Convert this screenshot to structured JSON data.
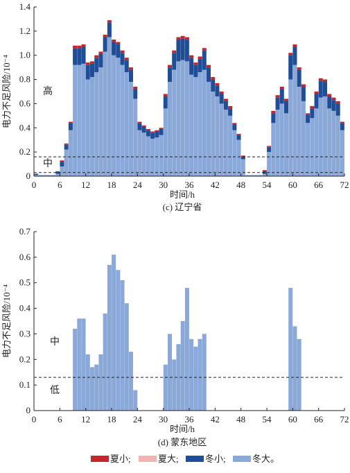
{
  "chart_data": [
    {
      "type": "bar",
      "stacked": true,
      "caption": "(c) 辽宁省",
      "xlabel": "时间/h",
      "ylabel": "电力不足风险/10⁻⁴",
      "xlim": [
        0,
        72
      ],
      "ylim": [
        0,
        1.4
      ],
      "xticks": [
        0,
        6,
        12,
        18,
        24,
        30,
        36,
        42,
        48,
        54,
        60,
        66,
        72
      ],
      "yticks": [
        "0",
        "0.2",
        "0.4",
        "0.6",
        "0.8",
        "1.0",
        "1.2",
        "1.4"
      ],
      "threshold_lines": [
        0.16,
        0.03
      ],
      "zone_labels": [
        "高",
        "中"
      ],
      "hours": [
        1,
        2,
        3,
        4,
        5,
        6,
        7,
        8,
        9,
        10,
        11,
        12,
        13,
        14,
        15,
        16,
        17,
        18,
        19,
        20,
        21,
        22,
        23,
        24,
        25,
        26,
        27,
        28,
        29,
        30,
        31,
        32,
        33,
        34,
        35,
        36,
        37,
        38,
        39,
        40,
        41,
        42,
        43,
        44,
        45,
        46,
        47,
        48,
        49,
        50,
        51,
        52,
        53,
        54,
        55,
        56,
        57,
        58,
        59,
        60,
        61,
        62,
        63,
        64,
        65,
        66,
        67,
        68,
        69,
        70,
        71,
        72
      ],
      "series": [
        {
          "name": "冬大",
          "values": [
            0.01,
            0.01,
            0.01,
            0.01,
            0.01,
            0.02,
            0.08,
            0.22,
            0.38,
            0.92,
            0.92,
            0.93,
            0.8,
            0.82,
            0.86,
            0.9,
            1.03,
            1.15,
            1.0,
            0.98,
            0.92,
            0.86,
            0.78,
            0.64,
            0.38,
            0.36,
            0.33,
            0.31,
            0.32,
            0.34,
            0.56,
            0.78,
            0.88,
            0.95,
            0.96,
            0.95,
            0.84,
            0.82,
            0.86,
            0.88,
            0.78,
            0.7,
            0.66,
            0.6,
            0.55,
            0.5,
            0.38,
            0.3,
            0.14,
            0.01,
            0.01,
            0.01,
            0.01,
            0.02,
            0.2,
            0.44,
            0.55,
            0.6,
            0.52,
            0.8,
            0.92,
            0.74,
            0.62,
            0.44,
            0.48,
            0.56,
            0.65,
            0.66,
            0.56,
            0.54,
            0.5,
            0.38
          ]
        },
        {
          "name": "冬小",
          "values": [
            0.01,
            0.0,
            0.0,
            0.0,
            0.0,
            0.02,
            0.04,
            0.04,
            0.06,
            0.14,
            0.14,
            0.14,
            0.12,
            0.11,
            0.12,
            0.11,
            0.12,
            0.12,
            0.11,
            0.11,
            0.1,
            0.1,
            0.1,
            0.08,
            0.06,
            0.05,
            0.05,
            0.05,
            0.05,
            0.05,
            0.1,
            0.12,
            0.14,
            0.18,
            0.18,
            0.18,
            0.14,
            0.1,
            0.11,
            0.16,
            0.12,
            0.1,
            0.09,
            0.08,
            0.07,
            0.06,
            0.05,
            0.04,
            0.02,
            0.0,
            0.0,
            0.0,
            0.0,
            0.02,
            0.04,
            0.08,
            0.1,
            0.12,
            0.1,
            0.2,
            0.15,
            0.14,
            0.12,
            0.07,
            0.08,
            0.12,
            0.14,
            0.12,
            0.1,
            0.09,
            0.1,
            0.06
          ]
        },
        {
          "name": "夏大",
          "values": [
            0.0,
            0.0,
            0.0,
            0.0,
            0.0,
            0.0,
            0.0,
            0.0,
            0.0,
            0.0,
            0.0,
            0.0,
            0.0,
            0.0,
            0.0,
            0.0,
            0.0,
            0.0,
            0.0,
            0.0,
            0.0,
            0.0,
            0.0,
            0.0,
            0.0,
            0.0,
            0.0,
            0.0,
            0.0,
            0.0,
            0.0,
            0.0,
            0.0,
            0.0,
            0.0,
            0.0,
            0.0,
            0.0,
            0.0,
            0.0,
            0.0,
            0.0,
            0.0,
            0.0,
            0.0,
            0.0,
            0.0,
            0.0,
            0.0,
            0.0,
            0.0,
            0.0,
            0.0,
            0.0,
            0.0,
            0.0,
            0.0,
            0.0,
            0.0,
            0.0,
            0.0,
            0.0,
            0.0,
            0.0,
            0.0,
            0.0,
            0.0,
            0.0,
            0.0,
            0.0,
            0.0,
            0.0
          ]
        },
        {
          "name": "夏小",
          "values": [
            0.0,
            0.0,
            0.0,
            0.0,
            0.0,
            0.0,
            0.01,
            0.01,
            0.01,
            0.02,
            0.02,
            0.02,
            0.02,
            0.02,
            0.02,
            0.02,
            0.02,
            0.02,
            0.02,
            0.02,
            0.02,
            0.02,
            0.02,
            0.02,
            0.01,
            0.01,
            0.01,
            0.01,
            0.01,
            0.01,
            0.02,
            0.02,
            0.02,
            0.02,
            0.02,
            0.02,
            0.02,
            0.02,
            0.02,
            0.02,
            0.02,
            0.02,
            0.02,
            0.02,
            0.02,
            0.02,
            0.01,
            0.01,
            0.01,
            0.0,
            0.0,
            0.0,
            0.0,
            0.01,
            0.01,
            0.02,
            0.02,
            0.02,
            0.02,
            0.02,
            0.02,
            0.02,
            0.02,
            0.01,
            0.02,
            0.02,
            0.02,
            0.02,
            0.02,
            0.02,
            0.02,
            0.01
          ]
        }
      ]
    },
    {
      "type": "bar",
      "stacked": true,
      "caption": "(d) 蒙东地区",
      "xlabel": "时间/h",
      "ylabel": "电力不足风险/10⁻⁴",
      "xlim": [
        0,
        72
      ],
      "ylim": [
        0,
        0.7
      ],
      "xticks": [
        0,
        6,
        12,
        18,
        24,
        30,
        36,
        42,
        48,
        54,
        60,
        66,
        72
      ],
      "yticks": [
        "0",
        "0.1",
        "0.2",
        "0.3",
        "0.4",
        "0.5",
        "0.6",
        "0.7"
      ],
      "threshold_lines": [
        0.13
      ],
      "zone_labels": [
        "中",
        "低"
      ],
      "hours": [
        1,
        2,
        3,
        4,
        5,
        6,
        7,
        8,
        9,
        10,
        11,
        12,
        13,
        14,
        15,
        16,
        17,
        18,
        19,
        20,
        21,
        22,
        23,
        24,
        25,
        26,
        27,
        28,
        29,
        30,
        31,
        32,
        33,
        34,
        35,
        36,
        37,
        38,
        39,
        40,
        41,
        42,
        43,
        44,
        45,
        46,
        47,
        48,
        49,
        50,
        51,
        52,
        53,
        54,
        55,
        56,
        57,
        58,
        59,
        60,
        61,
        62,
        63,
        64,
        65,
        66,
        67,
        68,
        69,
        70,
        71,
        72
      ],
      "series": [
        {
          "name": "冬大",
          "values": [
            0,
            0,
            0,
            0,
            0,
            0,
            0,
            0,
            0,
            0.32,
            0.36,
            0.36,
            0.22,
            0.17,
            0.18,
            0.22,
            0.38,
            0.57,
            0.61,
            0.55,
            0.51,
            0.42,
            0.23,
            0.08,
            0,
            0,
            0,
            0,
            0,
            0,
            0.18,
            0.3,
            0.2,
            0.26,
            0.35,
            0.48,
            0.28,
            0.25,
            0.28,
            0.3,
            0,
            0,
            0,
            0,
            0,
            0,
            0,
            0,
            0,
            0,
            0,
            0,
            0,
            0,
            0,
            0,
            0,
            0,
            0,
            0.48,
            0.33,
            0.28,
            0,
            0,
            0,
            0,
            0,
            0,
            0,
            0,
            0,
            0
          ]
        },
        {
          "name": "冬小",
          "values": [
            0,
            0,
            0,
            0,
            0,
            0,
            0,
            0,
            0,
            0,
            0,
            0,
            0,
            0,
            0,
            0,
            0,
            0,
            0,
            0,
            0,
            0,
            0,
            0,
            0,
            0,
            0,
            0,
            0,
            0,
            0,
            0,
            0,
            0,
            0,
            0,
            0,
            0,
            0,
            0,
            0,
            0,
            0,
            0,
            0,
            0,
            0,
            0,
            0,
            0,
            0,
            0,
            0,
            0,
            0,
            0,
            0,
            0,
            0,
            0,
            0,
            0,
            0,
            0,
            0,
            0,
            0,
            0,
            0,
            0,
            0,
            0
          ]
        },
        {
          "name": "夏大",
          "values": [
            0,
            0,
            0,
            0,
            0,
            0,
            0,
            0,
            0,
            0,
            0,
            0,
            0,
            0,
            0,
            0,
            0,
            0,
            0,
            0,
            0,
            0,
            0,
            0,
            0,
            0,
            0,
            0,
            0,
            0,
            0,
            0,
            0,
            0,
            0,
            0,
            0,
            0,
            0,
            0,
            0,
            0,
            0,
            0,
            0,
            0,
            0,
            0,
            0,
            0,
            0,
            0,
            0,
            0,
            0,
            0,
            0,
            0,
            0,
            0,
            0,
            0,
            0,
            0,
            0,
            0,
            0,
            0,
            0,
            0,
            0,
            0
          ]
        },
        {
          "name": "夏小",
          "values": [
            0,
            0,
            0,
            0,
            0,
            0,
            0,
            0,
            0,
            0,
            0,
            0,
            0,
            0,
            0,
            0,
            0,
            0,
            0,
            0,
            0,
            0,
            0,
            0,
            0,
            0,
            0,
            0,
            0,
            0,
            0,
            0,
            0,
            0,
            0,
            0,
            0,
            0,
            0,
            0,
            0,
            0,
            0,
            0,
            0,
            0,
            0,
            0,
            0,
            0,
            0,
            0,
            0,
            0,
            0,
            0,
            0,
            0,
            0,
            0,
            0,
            0,
            0,
            0,
            0,
            0,
            0,
            0,
            0,
            0,
            0,
            0
          ]
        }
      ]
    }
  ],
  "legend": {
    "items": [
      {
        "label": "夏小;",
        "color": "#c0282d"
      },
      {
        "label": "夏大;",
        "color": "#f2b3b3"
      },
      {
        "label": "冬小;",
        "color": "#1f4e96"
      },
      {
        "label": "冬大。",
        "color": "#8aa8d8"
      }
    ],
    "placement": "bottom"
  },
  "colors": {
    "冬大": "#8aa8d8",
    "冬小": "#1f4e96",
    "夏大": "#f2b3b3",
    "夏小": "#c0282d"
  }
}
